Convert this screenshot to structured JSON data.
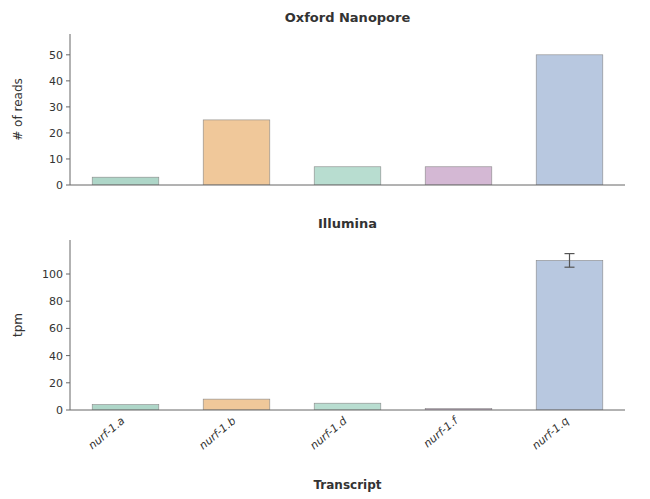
{
  "chart_data": [
    {
      "type": "bar",
      "title": "Oxford Nanopore",
      "y_label": "# of reads",
      "categories": [
        null,
        null,
        null,
        null,
        null
      ],
      "values": [
        3,
        25,
        7,
        7,
        50
      ],
      "colors": [
        "#aed6c8",
        "#f0c89a",
        "#b8ddd0",
        "#d4b8d4",
        "#b8c8e0"
      ],
      "ylim": [
        0,
        58
      ],
      "yticks": [
        0,
        10,
        20,
        30,
        40,
        50
      ],
      "grid": false
    },
    {
      "type": "bar",
      "title": "Illumina",
      "y_label": "tpm",
      "x_label": "Transcript",
      "categories": [
        "nurf-1.a",
        "nurf-1.b",
        "nurf-1.d",
        "nurf-1.f",
        "nurf-1.q"
      ],
      "values": [
        4,
        8,
        5,
        1,
        110
      ],
      "errors": [
        null,
        null,
        null,
        null,
        5
      ],
      "colors": [
        "#aed6c8",
        "#f0c89a",
        "#b8ddd0",
        "#d4b8d4",
        "#b8c8e0"
      ],
      "ylim": [
        0,
        125
      ],
      "yticks": [
        0,
        20,
        40,
        60,
        80,
        100
      ],
      "grid": false
    }
  ]
}
